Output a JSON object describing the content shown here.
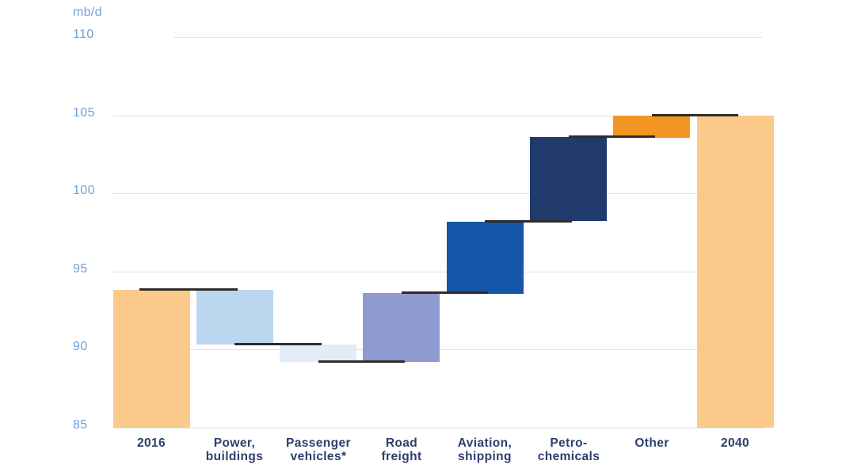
{
  "chart_data": {
    "type": "waterfall",
    "title": "",
    "unit": "mb/d",
    "ylabel": "mb/d",
    "xlabel": "",
    "ylim": [
      85,
      112
    ],
    "y_ticks": [
      85,
      90,
      95,
      100,
      105,
      110
    ],
    "grid": "horizontal-light",
    "legend": "none",
    "baseline": 85,
    "categories": [
      "2016",
      "Power, buildings",
      "Passenger vehicles*",
      "Road freight",
      "Aviation, shipping",
      "Petro-chemicals",
      "Other",
      "2040"
    ],
    "bars": [
      {
        "label_lines": [
          "2016"
        ],
        "kind": "total",
        "start": 85.0,
        "end": 93.8,
        "value": 93.8,
        "color": "#FBCA8B"
      },
      {
        "label_lines": [
          "Power,",
          "buildings"
        ],
        "kind": "decrease",
        "start": 93.8,
        "end": 90.3,
        "delta": -3.5,
        "color": "#BBD6EF"
      },
      {
        "label_lines": [
          "Passenger",
          "vehicles*"
        ],
        "kind": "decrease",
        "start": 90.3,
        "end": 89.2,
        "delta": -1.1,
        "color": "#E2EBF7"
      },
      {
        "label_lines": [
          "Road",
          "freight"
        ],
        "kind": "increase",
        "start": 89.2,
        "end": 93.6,
        "delta": 4.4,
        "color": "#8F9AD1"
      },
      {
        "label_lines": [
          "Aviation,",
          "shipping"
        ],
        "kind": "increase",
        "start": 93.6,
        "end": 98.2,
        "delta": 4.6,
        "color": "#1656A8"
      },
      {
        "label_lines": [
          "Petro-",
          "chemicals"
        ],
        "kind": "increase",
        "start": 98.2,
        "end": 103.6,
        "delta": 5.4,
        "color": "#1F3A6B"
      },
      {
        "label_lines": [
          "Other"
        ],
        "kind": "increase",
        "start": 103.6,
        "end": 105.0,
        "delta": 1.4,
        "color": "#F29522"
      },
      {
        "label_lines": [
          "2040"
        ],
        "kind": "total",
        "start": 85.0,
        "end": 105.0,
        "value": 105.0,
        "color": "#FBCA8B"
      }
    ],
    "connector_levels": [
      93.8,
      90.3,
      89.2,
      93.6,
      98.2,
      103.6,
      105.0
    ],
    "colors": {
      "connector": "#302C28",
      "gridline": "#E1E1E1",
      "y_axis_text": "#6FA1D7",
      "category_text": "#2C406E",
      "total_bar": "#FBCA8B",
      "highlight_bar": "#F29522"
    }
  }
}
